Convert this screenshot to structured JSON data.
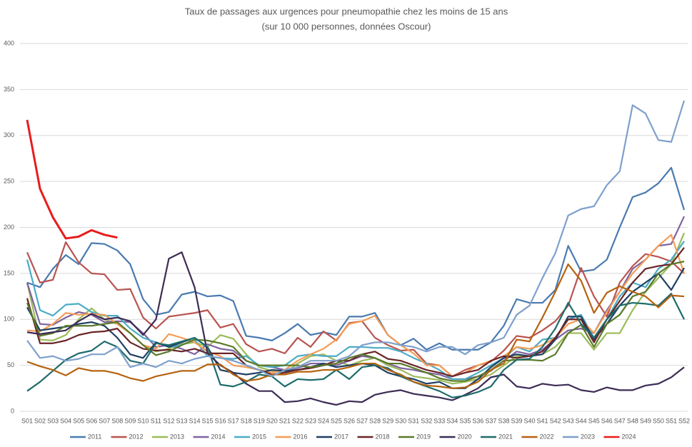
{
  "chart_data": {
    "type": "line",
    "title": "Taux de passages aux urgences pour pneumopathie chez les moins de 15 ans",
    "subtitle": "(sur 10 000 personnes, données Oscour)",
    "categories": [
      "S01",
      "S02",
      "S03",
      "S04",
      "S05",
      "S06",
      "S07",
      "S08",
      "S09",
      "S10",
      "S11",
      "S12",
      "S13",
      "S14",
      "S15",
      "S16",
      "S17",
      "S18",
      "S19",
      "S20",
      "S21",
      "S22",
      "S23",
      "S24",
      "S25",
      "S26",
      "S27",
      "S28",
      "S29",
      "S30",
      "S31",
      "S32",
      "S33",
      "S34",
      "S35",
      "S36",
      "S37",
      "S38",
      "S39",
      "S40",
      "S41",
      "S42",
      "S43",
      "S44",
      "S45",
      "S46",
      "S47",
      "S48",
      "S49",
      "S50",
      "S51",
      "S52"
    ],
    "ylim": [
      0,
      400
    ],
    "yticks": [
      0,
      50,
      100,
      150,
      200,
      250,
      300,
      350,
      400
    ],
    "grid": true,
    "legend": "bottom",
    "series": [
      {
        "name": "2011",
        "color": "#4a7ab0",
        "values": [
          140,
          135,
          155,
          170,
          160,
          183,
          182,
          175,
          160,
          122,
          105,
          108,
          127,
          130,
          125,
          126,
          120,
          82,
          80,
          77,
          85,
          95,
          83,
          86,
          83,
          103,
          103,
          107,
          83,
          72,
          79,
          67,
          74,
          67,
          67,
          67,
          75,
          93,
          122,
          118,
          118,
          132,
          180,
          152,
          154,
          165,
          200,
          233,
          238,
          248,
          265,
          219
        ]
      },
      {
        "name": "2012",
        "color": "#b85450",
        "values": [
          173,
          140,
          143,
          184,
          162,
          150,
          149,
          132,
          133,
          102,
          90,
          103,
          105,
          107,
          110,
          91,
          95,
          73,
          65,
          68,
          63,
          80,
          70,
          87,
          77,
          96,
          98,
          80,
          72,
          66,
          67,
          52,
          50,
          38,
          45,
          50,
          54,
          66,
          82,
          80,
          88,
          98,
          115,
          156,
          125,
          103,
          140,
          158,
          171,
          168,
          163,
          150
        ]
      },
      {
        "name": "2013",
        "color": "#9bbb59",
        "values": [
          140,
          78,
          77,
          83,
          100,
          112,
          100,
          95,
          85,
          72,
          65,
          68,
          73,
          75,
          70,
          83,
          79,
          62,
          48,
          44,
          42,
          52,
          60,
          62,
          55,
          50,
          55,
          58,
          50,
          45,
          38,
          36,
          34,
          30,
          32,
          35,
          40,
          50,
          60,
          60,
          62,
          70,
          85,
          85,
          67,
          85,
          85,
          110,
          130,
          145,
          160,
          194
        ]
      },
      {
        "name": "2014",
        "color": "#7f63a0",
        "values": [
          140,
          95,
          94,
          102,
          108,
          105,
          97,
          98,
          97,
          85,
          70,
          72,
          68,
          62,
          73,
          68,
          66,
          55,
          50,
          48,
          45,
          47,
          52,
          52,
          50,
          55,
          60,
          58,
          52,
          47,
          45,
          42,
          40,
          35,
          35,
          38,
          44,
          55,
          65,
          62,
          67,
          78,
          88,
          90,
          85,
          110,
          130,
          155,
          165,
          180,
          182,
          212
        ]
      },
      {
        "name": "2015",
        "color": "#4bacc6",
        "values": [
          165,
          110,
          104,
          116,
          117,
          108,
          104,
          104,
          90,
          80,
          75,
          70,
          72,
          78,
          60,
          58,
          57,
          60,
          50,
          48,
          50,
          60,
          62,
          60,
          60,
          70,
          70,
          69,
          69,
          65,
          58,
          52,
          45,
          35,
          35,
          42,
          50,
          58,
          70,
          65,
          78,
          80,
          100,
          105,
          80,
          100,
          125,
          140,
          135,
          155,
          165,
          185
        ]
      },
      {
        "name": "2016",
        "color": "#f59d56",
        "values": [
          88,
          87,
          95,
          107,
          105,
          106,
          105,
          95,
          85,
          72,
          68,
          84,
          80,
          75,
          65,
          60,
          50,
          48,
          45,
          42,
          45,
          55,
          62,
          68,
          78,
          95,
          98,
          104,
          83,
          72,
          63,
          50,
          50,
          38,
          42,
          50,
          55,
          60,
          70,
          68,
          72,
          80,
          95,
          100,
          85,
          108,
          130,
          150,
          165,
          180,
          192,
          150
        ]
      },
      {
        "name": "2017",
        "color": "#1f3f63",
        "values": [
          113,
          88,
          90,
          92,
          95,
          97,
          93,
          80,
          62,
          58,
          75,
          70,
          75,
          80,
          70,
          45,
          42,
          40,
          42,
          45,
          44,
          45,
          48,
          52,
          48,
          50,
          52,
          50,
          42,
          38,
          35,
          30,
          32,
          25,
          25,
          35,
          48,
          58,
          62,
          60,
          62,
          78,
          103,
          103,
          78,
          95,
          115,
          130,
          140,
          150,
          132,
          156
        ]
      },
      {
        "name": "2018",
        "color": "#6b2427",
        "values": [
          123,
          74,
          74,
          77,
          83,
          86,
          87,
          90,
          75,
          68,
          66,
          67,
          65,
          68,
          63,
          63,
          63,
          50,
          45,
          40,
          42,
          45,
          47,
          50,
          55,
          55,
          62,
          65,
          57,
          55,
          50,
          45,
          42,
          38,
          42,
          45,
          55,
          60,
          58,
          60,
          65,
          80,
          100,
          100,
          75,
          100,
          120,
          140,
          155,
          158,
          160,
          178
        ]
      },
      {
        "name": "2019",
        "color": "#5a7a2a",
        "values": [
          118,
          82,
          85,
          93,
          93,
          93,
          95,
          97,
          85,
          72,
          61,
          65,
          72,
          78,
          77,
          74,
          70,
          55,
          50,
          50,
          50,
          50,
          48,
          50,
          52,
          58,
          62,
          58,
          52,
          52,
          47,
          42,
          36,
          33,
          33,
          38,
          45,
          55,
          56,
          56,
          55,
          62,
          85,
          94,
          70,
          95,
          105,
          125,
          130,
          150,
          160,
          163
        ]
      },
      {
        "name": "2020",
        "color": "#3d2c55",
        "values": [
          86,
          84,
          86,
          88,
          98,
          106,
          100,
          102,
          98,
          83,
          100,
          166,
          173,
          135,
          63,
          50,
          42,
          30,
          22,
          22,
          10,
          11,
          14,
          10,
          7,
          11,
          10,
          18,
          21,
          23,
          19,
          17,
          15,
          12,
          18,
          25,
          37,
          40,
          27,
          25,
          30,
          28,
          29,
          23,
          21,
          26,
          23,
          23,
          28,
          30,
          37,
          48
        ]
      },
      {
        "name": "2021",
        "color": "#1e6b6b",
        "values": [
          22,
          32,
          44,
          56,
          63,
          66,
          76,
          70,
          55,
          52,
          74,
          72,
          76,
          80,
          70,
          29,
          27,
          32,
          40,
          38,
          27,
          35,
          34,
          35,
          45,
          35,
          48,
          50,
          47,
          38,
          32,
          27,
          22,
          15,
          17,
          21,
          27,
          45,
          56,
          57,
          70,
          90,
          118,
          95,
          80,
          100,
          115,
          118,
          117,
          115,
          128,
          100
        ]
      },
      {
        "name": "2022",
        "color": "#b5630f",
        "values": [
          54,
          49,
          45,
          39,
          47,
          44,
          44,
          41,
          36,
          33,
          38,
          41,
          44,
          44,
          51,
          51,
          40,
          33,
          35,
          40,
          40,
          43,
          43,
          45,
          45,
          48,
          52,
          52,
          45,
          40,
          32,
          28,
          27,
          25,
          26,
          32,
          45,
          52,
          78,
          76,
          102,
          130,
          160,
          142,
          107,
          129,
          136,
          130,
          125,
          113,
          126,
          125
        ]
      },
      {
        "name": "2023",
        "color": "#7ea0cc",
        "values": [
          77,
          58,
          60,
          55,
          57,
          62,
          62,
          70,
          48,
          52,
          48,
          55,
          52,
          57,
          60,
          58,
          55,
          50,
          45,
          38,
          45,
          48,
          55,
          55,
          55,
          60,
          72,
          75,
          75,
          72,
          70,
          65,
          70,
          70,
          62,
          72,
          75,
          80,
          105,
          115,
          145,
          172,
          213,
          220,
          223,
          246,
          261,
          333,
          324,
          295,
          293,
          338
        ]
      },
      {
        "name": "2024",
        "color": "#e81c1c",
        "values": [
          317,
          242,
          211,
          188,
          190,
          197,
          192,
          189,
          null,
          null,
          null,
          null,
          null,
          null,
          null,
          null,
          null,
          null,
          null,
          null,
          null,
          null,
          null,
          null,
          null,
          null,
          null,
          null,
          null,
          null,
          null,
          null,
          null,
          null,
          null,
          null,
          null,
          null,
          null,
          null,
          null,
          null,
          null,
          null,
          null,
          null,
          null,
          null,
          null,
          null,
          null,
          null
        ]
      }
    ]
  }
}
